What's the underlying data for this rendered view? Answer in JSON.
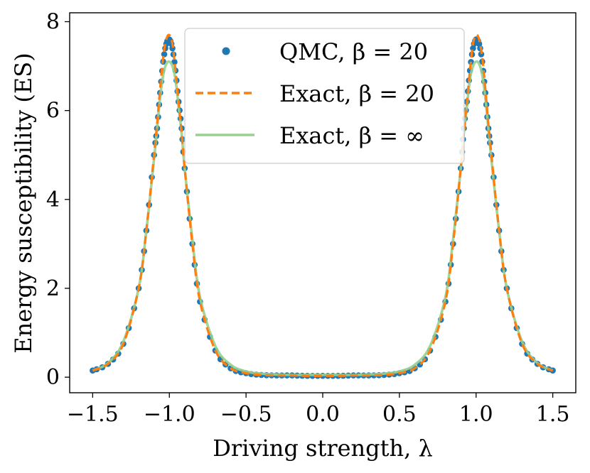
{
  "chart_data": {
    "type": "line",
    "xlabel": "Driving strength, λ",
    "ylabel": "Energy susceptibility (ES)",
    "xlim": [
      -1.65,
      1.65
    ],
    "ylim": [
      -0.35,
      8.2
    ],
    "xticks": [
      -1.5,
      -1.0,
      -0.5,
      0.0,
      0.5,
      1.0,
      1.5
    ],
    "xtick_labels": [
      "−1.5",
      "−1.0",
      "−0.5",
      "0.0",
      "0.5",
      "1.0",
      "1.5"
    ],
    "yticks": [
      0,
      2,
      4,
      6,
      8
    ],
    "ytick_labels": [
      "0",
      "2",
      "4",
      "6",
      "8"
    ],
    "grid": false,
    "legend_position": "top-center",
    "x": [
      -1.5,
      -1.4,
      -1.3,
      -1.2,
      -1.15,
      -1.1,
      -1.08,
      -1.06,
      -1.04,
      -1.02,
      -1.0,
      -0.98,
      -0.96,
      -0.94,
      -0.92,
      -0.9,
      -0.85,
      -0.8,
      -0.7,
      -0.6,
      -0.5,
      -0.4,
      -0.3,
      -0.2,
      -0.1,
      0.0,
      0.1,
      0.2,
      0.3,
      0.4,
      0.5,
      0.6,
      0.7,
      0.8,
      0.85,
      0.9,
      0.92,
      0.94,
      0.96,
      0.98,
      1.0,
      1.02,
      1.04,
      1.06,
      1.08,
      1.1,
      1.15,
      1.2,
      1.3,
      1.4,
      1.5
    ],
    "series": [
      {
        "name": "QMC, β = 20",
        "style": "markers",
        "color": "#1f77b4",
        "values": [
          0.15,
          0.3,
          0.75,
          2.0,
          3.3,
          5.0,
          5.6,
          6.4,
          7.1,
          7.5,
          7.6,
          7.4,
          6.9,
          6.2,
          5.6,
          4.7,
          3.0,
          1.7,
          0.6,
          0.2,
          0.09,
          0.05,
          0.04,
          0.04,
          0.03,
          0.03,
          0.03,
          0.04,
          0.04,
          0.05,
          0.09,
          0.2,
          0.6,
          1.7,
          3.0,
          4.7,
          5.6,
          6.2,
          6.9,
          7.4,
          7.6,
          7.5,
          7.1,
          6.4,
          5.6,
          5.0,
          3.3,
          2.0,
          0.75,
          0.3,
          0.15
        ]
      },
      {
        "name": "Exact, β = 20",
        "style": "dashed",
        "color": "#ff7f0e",
        "values": [
          0.15,
          0.3,
          0.75,
          2.0,
          3.3,
          5.0,
          5.7,
          6.5,
          7.2,
          7.6,
          7.7,
          7.5,
          6.9,
          6.2,
          5.5,
          4.7,
          3.0,
          1.7,
          0.6,
          0.2,
          0.09,
          0.05,
          0.04,
          0.04,
          0.03,
          0.03,
          0.03,
          0.04,
          0.04,
          0.05,
          0.09,
          0.2,
          0.6,
          1.7,
          3.0,
          4.7,
          5.5,
          6.2,
          6.9,
          7.5,
          7.7,
          7.6,
          7.2,
          6.5,
          5.7,
          5.0,
          3.3,
          2.0,
          0.75,
          0.3,
          0.15
        ]
      },
      {
        "name": "Exact, β = ∞",
        "style": "solid",
        "color": "#98d08f",
        "values": [
          0.15,
          0.32,
          0.8,
          2.0,
          3.3,
          4.9,
          5.6,
          6.3,
          6.8,
          7.05,
          7.1,
          7.0,
          6.7,
          6.1,
          5.5,
          4.7,
          3.1,
          1.8,
          0.7,
          0.28,
          0.13,
          0.08,
          0.06,
          0.05,
          0.05,
          0.05,
          0.05,
          0.05,
          0.06,
          0.08,
          0.13,
          0.28,
          0.7,
          1.8,
          3.1,
          4.7,
          5.5,
          6.1,
          6.7,
          7.0,
          7.1,
          7.05,
          6.8,
          6.3,
          5.6,
          4.9,
          3.3,
          2.0,
          0.8,
          0.32,
          0.15
        ]
      }
    ]
  }
}
